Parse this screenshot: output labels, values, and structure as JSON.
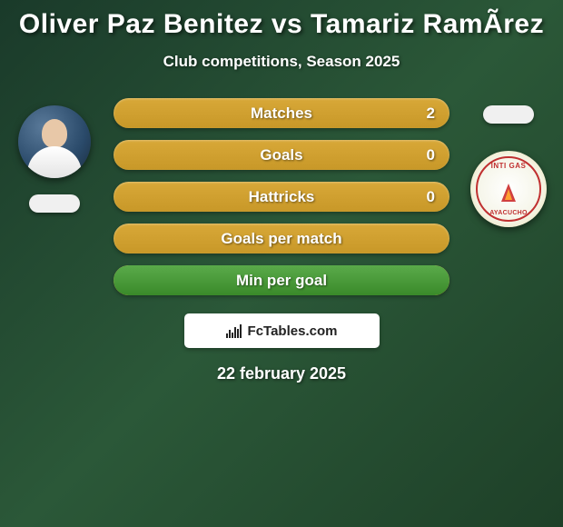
{
  "title": "Oliver Paz Benitez vs Tamariz RamÃ­rez",
  "subtitle": "Club competitions, Season 2025",
  "date": "22 february 2025",
  "branding": {
    "text": "FcTables.com"
  },
  "club_badge": {
    "top_text": "INTI GAS",
    "bottom_text": "AYACUCHO",
    "ring_color": "#c03030",
    "bg_color": "#f5f5e8"
  },
  "colors": {
    "background_gradient_start": "#1a3a2a",
    "background_gradient_mid": "#2b5838",
    "background_gradient_end": "#1e4028",
    "bar_gold": "#c89828",
    "bar_green": "#3a8a2a",
    "text_white": "#ffffff"
  },
  "stats": [
    {
      "label": "Matches",
      "value_right": "2",
      "fill_percent": 0
    },
    {
      "label": "Goals",
      "value_right": "0",
      "fill_percent": 0
    },
    {
      "label": "Hattricks",
      "value_right": "0",
      "fill_percent": 0
    },
    {
      "label": "Goals per match",
      "value_right": "",
      "fill_percent": 0
    },
    {
      "label": "Min per goal",
      "value_right": "",
      "fill_percent": 100
    }
  ]
}
